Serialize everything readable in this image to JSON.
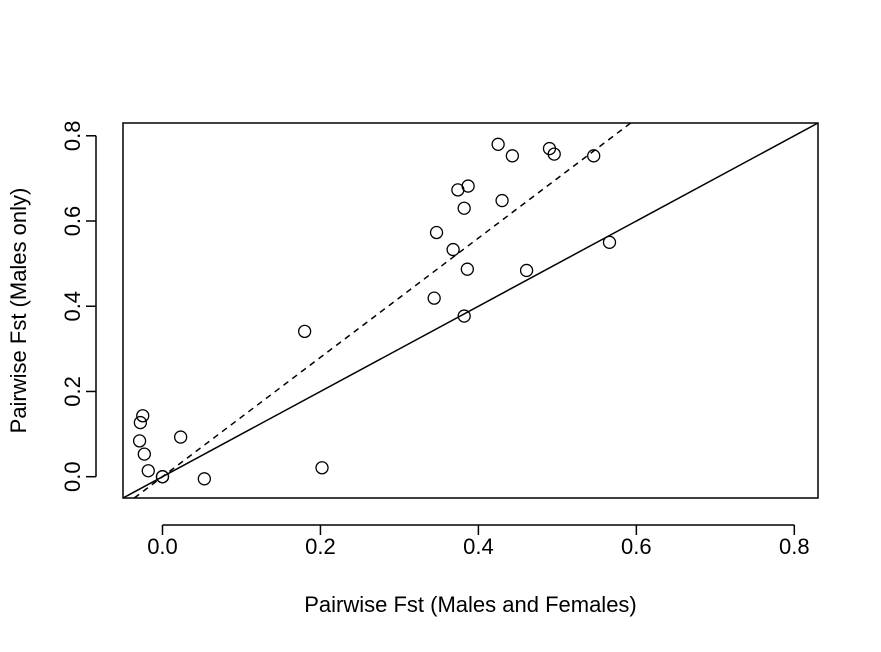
{
  "chart_data": {
    "type": "scatter",
    "title": "",
    "xlabel": "Pairwise Fst (Males and Females)",
    "ylabel": "Pairwise Fst (Males only)",
    "xlim": [
      -0.05,
      0.83
    ],
    "ylim": [
      -0.05,
      0.83
    ],
    "xticks": [
      0.0,
      0.2,
      0.4,
      0.6,
      0.8
    ],
    "yticks": [
      0.0,
      0.2,
      0.4,
      0.6,
      0.8
    ],
    "xtick_labels": [
      "0.0",
      "0.2",
      "0.4",
      "0.6",
      "0.8"
    ],
    "ytick_labels": [
      "0.0",
      "0.2",
      "0.4",
      "0.6",
      "0.8"
    ],
    "grid": false,
    "series": [
      {
        "marker": "open-circle",
        "color": "#000000",
        "points": [
          {
            "x": -0.029,
            "y": 0.084
          },
          {
            "x": -0.028,
            "y": 0.127
          },
          {
            "x": -0.025,
            "y": 0.143
          },
          {
            "x": -0.023,
            "y": 0.053
          },
          {
            "x": -0.018,
            "y": 0.014
          },
          {
            "x": 0.0,
            "y": 0.0
          },
          {
            "x": 0.0,
            "y": 0.0
          },
          {
            "x": 0.023,
            "y": 0.093
          },
          {
            "x": 0.053,
            "y": -0.005
          },
          {
            "x": 0.18,
            "y": 0.341
          },
          {
            "x": 0.202,
            "y": 0.021
          },
          {
            "x": 0.344,
            "y": 0.419
          },
          {
            "x": 0.347,
            "y": 0.573
          },
          {
            "x": 0.368,
            "y": 0.533
          },
          {
            "x": 0.374,
            "y": 0.673
          },
          {
            "x": 0.382,
            "y": 0.63
          },
          {
            "x": 0.382,
            "y": 0.377
          },
          {
            "x": 0.386,
            "y": 0.487
          },
          {
            "x": 0.387,
            "y": 0.682
          },
          {
            "x": 0.425,
            "y": 0.78
          },
          {
            "x": 0.43,
            "y": 0.648
          },
          {
            "x": 0.443,
            "y": 0.753
          },
          {
            "x": 0.461,
            "y": 0.484
          },
          {
            "x": 0.49,
            "y": 0.77
          },
          {
            "x": 0.496,
            "y": 0.757
          },
          {
            "x": 0.546,
            "y": 0.753
          },
          {
            "x": 0.566,
            "y": 0.55
          }
        ]
      }
    ],
    "reference_lines": [
      {
        "style": "solid",
        "color": "#000000",
        "slope": 1.0,
        "intercept": 0.0
      },
      {
        "style": "dashed",
        "color": "#000000",
        "slope": 1.4,
        "intercept": 0.0
      }
    ]
  }
}
